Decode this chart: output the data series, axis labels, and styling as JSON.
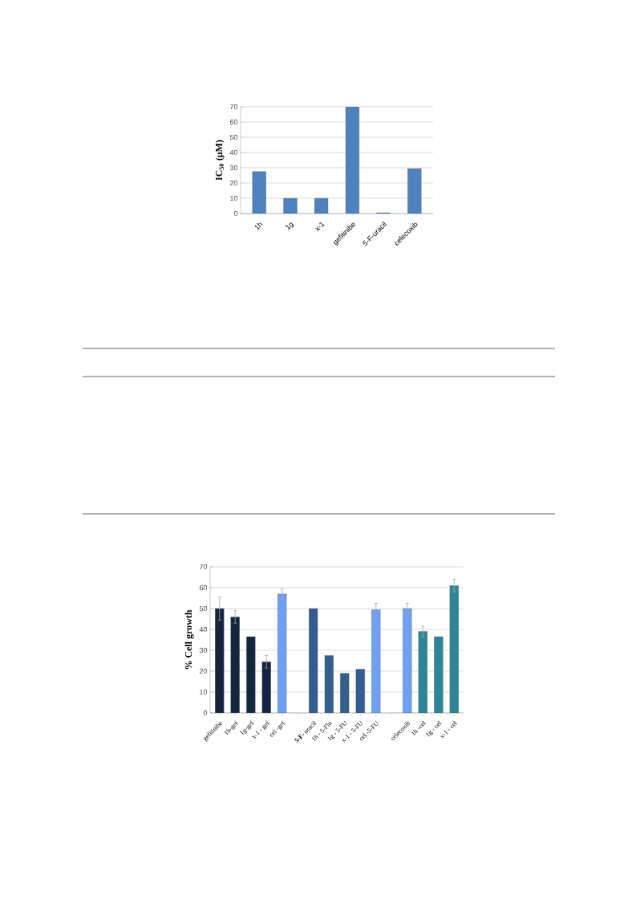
{
  "chart_data": [
    {
      "type": "bar",
      "ylabel": "IC$_{50}$ (μM)",
      "categories": [
        "1h",
        "1g",
        "x-1",
        "gefitinibe",
        "5-F-uracil",
        "celecoxib"
      ],
      "values": [
        27.5,
        10,
        10,
        70,
        0.5,
        29.5
      ],
      "color": "#4f81bd",
      "ylim": [
        0,
        70
      ],
      "yticks": [
        0,
        10,
        20,
        30,
        40,
        50,
        60,
        70
      ],
      "grid": "y"
    },
    {
      "type": "bar",
      "ylabel": "% Cell growth",
      "categories": [
        "gefitinibe",
        "1h-gef",
        "1g-gef",
        "x-1 - gef",
        "cel -gef",
        null,
        "**5-F-** uracil",
        "1h - 5-Flu",
        "1g - 5-FU",
        "x-1 - 5-FU",
        "cel.-5-FU",
        null,
        "celecoxib",
        "1h -cel",
        "1g - cel",
        "x-1 - cel"
      ],
      "values": [
        50,
        46,
        36.5,
        24.5,
        57,
        null,
        50,
        27.5,
        19,
        21,
        49.5,
        null,
        50,
        39,
        36.5,
        61
      ],
      "errors": [
        5.5,
        3,
        null,
        3,
        2.5,
        null,
        null,
        null,
        null,
        null,
        3,
        null,
        2.5,
        2.5,
        null,
        3
      ],
      "colors": [
        "#14263f",
        "#14263f",
        "#14263f",
        "#14263f",
        "#6f9ff5",
        "#ffffff",
        "#335d8f",
        "#335d8f",
        "#335d8f",
        "#335d8f",
        "#6f9ff5",
        "#ffffff",
        "#6f9ff5",
        "#2e8597",
        "#2e8597",
        "#2e8597"
      ],
      "ylim": [
        0,
        70
      ],
      "yticks": [
        0,
        10,
        20,
        30,
        40,
        50,
        60,
        70
      ],
      "grid": "y"
    }
  ]
}
